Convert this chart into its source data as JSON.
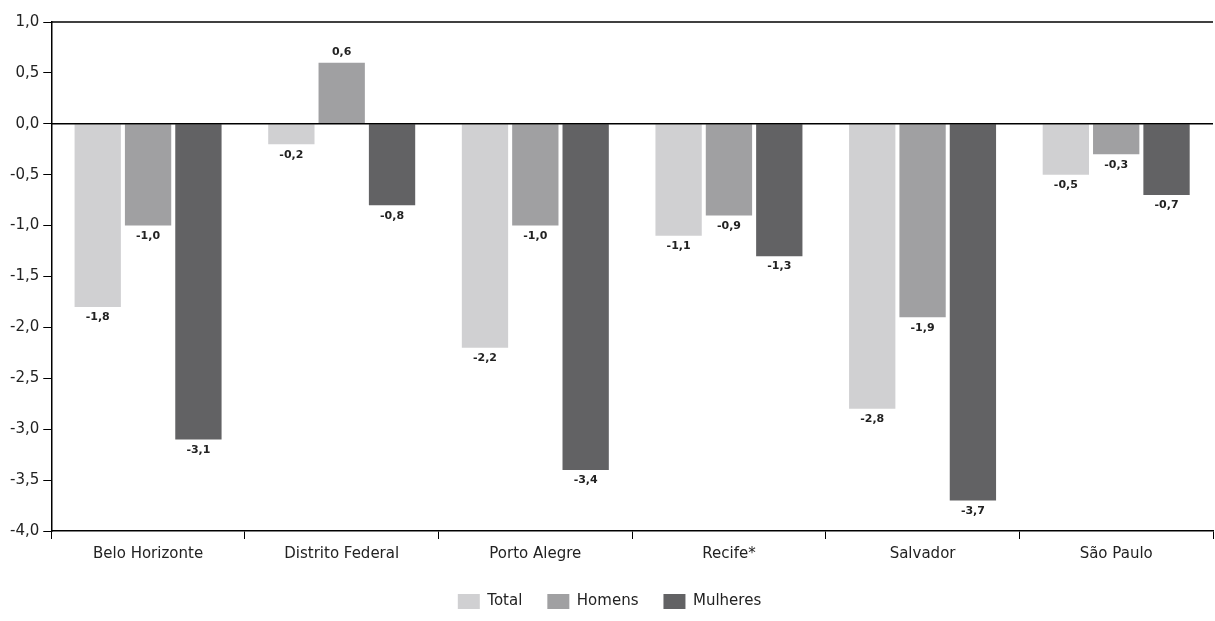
{
  "chart_data": {
    "type": "bar",
    "categories": [
      "Belo Horizonte",
      "Distrito Federal",
      "Porto Alegre",
      "Recife*",
      "Salvador",
      "São Paulo"
    ],
    "series": [
      {
        "name": "Total",
        "color": "#d0d0d2",
        "values": [
          -1.8,
          -0.2,
          -2.2,
          -1.1,
          -2.8,
          -0.5
        ],
        "value_labels": [
          "-1,8",
          "-0,2",
          "-2,2",
          "-1,1",
          "-2,8",
          "-0,5"
        ]
      },
      {
        "name": "Homens",
        "color": "#a0a0a2",
        "values": [
          -1.0,
          0.6,
          -1.0,
          -0.9,
          -1.9,
          -0.3
        ],
        "value_labels": [
          "-1,0",
          "0,6",
          "-1,0",
          "-0,9",
          "-1,9",
          "-0,3"
        ]
      },
      {
        "name": "Mulheres",
        "color": "#626264",
        "values": [
          -3.1,
          -0.8,
          -3.4,
          -1.3,
          -3.7,
          -0.7
        ],
        "value_labels": [
          "-3,1",
          "-0,8",
          "-3,4",
          "-1,3",
          "-3,7",
          "-0,7"
        ]
      }
    ],
    "ylim": [
      -4.0,
      1.0
    ],
    "yticks": [
      {
        "value": 1.0,
        "label": "1,0"
      },
      {
        "value": 0.5,
        "label": "0,5"
      },
      {
        "value": 0,
        "label": "0,0"
      },
      {
        "value": -0.5,
        "label": "-0,5"
      },
      {
        "value": -1.0,
        "label": "-1,0"
      },
      {
        "value": -1.5,
        "label": "-1,5"
      },
      {
        "value": -2.0,
        "label": "-2,0"
      },
      {
        "value": -2.5,
        "label": "-2,5"
      },
      {
        "value": -3.0,
        "label": "-3,0"
      },
      {
        "value": -3.5,
        "label": "-3,5"
      },
      {
        "value": -4.0,
        "label": "-4,0"
      }
    ],
    "ref_lines": [
      {
        "axis": "y",
        "value": 0,
        "color": "#000000"
      }
    ],
    "grid": false,
    "legend": "bottom"
  }
}
